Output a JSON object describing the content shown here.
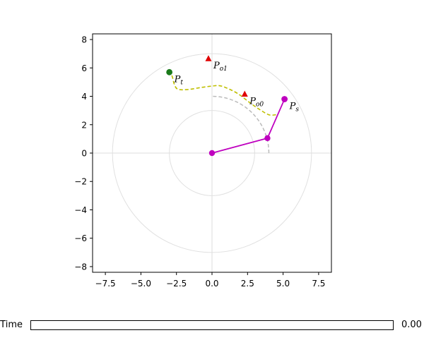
{
  "chart_data": {
    "type": "scatter",
    "title": "",
    "xlabel": "",
    "ylabel": "",
    "xlim": [
      -8.4,
      8.4
    ],
    "ylim": [
      -8.4,
      8.4
    ],
    "xticks": [
      -7.5,
      -5.0,
      -2.5,
      0.0,
      2.5,
      5.0,
      7.5
    ],
    "xtick_labels": [
      "−7.5",
      "−5.0",
      "−2.5",
      "0.0",
      "2.5",
      "5.0",
      "7.5"
    ],
    "yticks": [
      -8,
      -6,
      -4,
      -2,
      0,
      2,
      4,
      6,
      8
    ],
    "ytick_labels": [
      "−8",
      "−6",
      "−4",
      "−2",
      "0",
      "2",
      "4",
      "6",
      "8"
    ],
    "grid": false,
    "reference_lines": {
      "x": 0,
      "y": 0,
      "color": "#dddddd"
    },
    "circles": [
      {
        "r": 3.0,
        "color": "#e0e0e0"
      },
      {
        "r": 7.0,
        "color": "#e0e0e0"
      }
    ],
    "workspace_arc": {
      "r": 4.0,
      "angle_start_deg": 0,
      "angle_end_deg": 90,
      "color": "#bbbbbb",
      "style": "dashed"
    },
    "arm": {
      "color": "#bf00bf",
      "joints": [
        [
          0.0,
          0.0
        ],
        [
          3.9,
          1.05
        ],
        [
          5.1,
          3.8
        ]
      ]
    },
    "trajectory": {
      "color": "#bfbf00",
      "style": "dashed",
      "points": [
        [
          4.5,
          2.7
        ],
        [
          4.0,
          2.7
        ],
        [
          3.3,
          3.1
        ],
        [
          2.6,
          3.6
        ],
        [
          1.8,
          4.2
        ],
        [
          1.0,
          4.6
        ],
        [
          0.5,
          4.75
        ],
        [
          0.0,
          4.72
        ],
        [
          -0.8,
          4.62
        ],
        [
          -1.7,
          4.48
        ],
        [
          -2.4,
          4.5
        ],
        [
          -2.65,
          4.85
        ],
        [
          -2.8,
          5.4
        ],
        [
          -3.0,
          5.7
        ]
      ]
    },
    "points": [
      {
        "name": "P_t",
        "base": "P",
        "sub": "t",
        "x": -3.0,
        "y": 5.7,
        "marker": "circle",
        "color": "#1a7a1a"
      },
      {
        "name": "P_s",
        "base": "P",
        "sub": "s",
        "x": 5.1,
        "y": 3.8,
        "marker": "circle",
        "color": "#bf00bf"
      },
      {
        "name": "P_o0",
        "base": "P",
        "sub": "o0",
        "x": 2.3,
        "y": 4.15,
        "marker": "triangle",
        "color": "#e00000"
      },
      {
        "name": "P_o1",
        "base": "P",
        "sub": "o1",
        "x": -0.25,
        "y": 6.65,
        "marker": "triangle",
        "color": "#e00000"
      }
    ]
  },
  "slider": {
    "label": "Time",
    "value_text": "0.00",
    "value": 0.0
  }
}
